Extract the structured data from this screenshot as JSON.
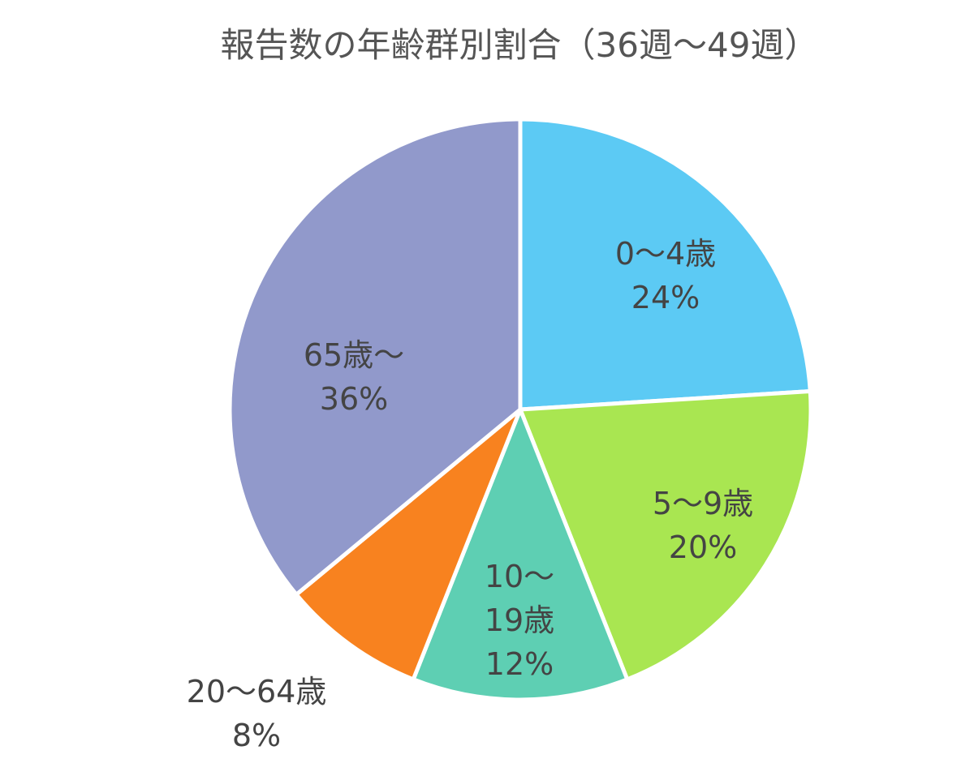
{
  "chart_data": {
    "type": "pie",
    "title": "報告数の年齢群別割合（36週～49週）",
    "categories": [
      "0～4歳",
      "5～9歳",
      "10～19歳",
      "20～64歳",
      "65歳～"
    ],
    "values": [
      24,
      20,
      12,
      8,
      36
    ],
    "value_labels": [
      "24%",
      "20%",
      "12%",
      "8%",
      "36%"
    ],
    "colors": [
      "#5ccaf4",
      "#a9e651",
      "#5ecfb3",
      "#f8821f",
      "#9199cb"
    ]
  }
}
